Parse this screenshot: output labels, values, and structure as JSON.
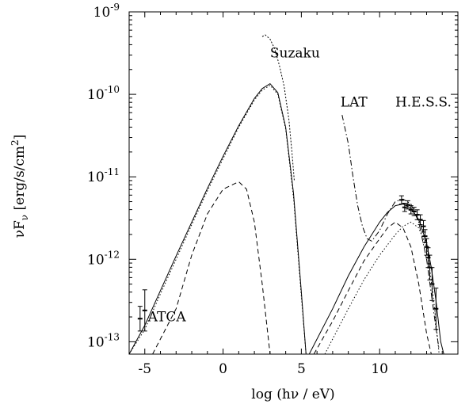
{
  "chart_data": {
    "type": "line",
    "title": "",
    "xlabel": "log (hν / eV)",
    "ylabel": {
      "base": "νF",
      "sub": "ν",
      "text": " [erg/s/cm",
      "sup": "2",
      "end": "]"
    },
    "xlim": [
      -6,
      15
    ],
    "ylim_log10": [
      -13.15,
      -9
    ],
    "y_scale": "log",
    "grid": false,
    "x_ticks": [
      -5,
      0,
      5,
      10
    ],
    "y_ticks": [
      {
        "base": "10",
        "exp": "-13",
        "log": -13
      },
      {
        "base": "10",
        "exp": "-12",
        "log": -12
      },
      {
        "base": "10",
        "exp": "-11",
        "log": -11
      },
      {
        "base": "10",
        "exp": "-10",
        "log": -10
      },
      {
        "base": "10",
        "exp": "-9",
        "log": -9
      }
    ],
    "annotations": [
      {
        "text": "Suzaku",
        "x": 3.0,
        "y_log": -9.55
      },
      {
        "text": "LAT",
        "x": 7.5,
        "y_log": -10.15
      },
      {
        "text": "H.E.S.S.",
        "x": 11.0,
        "y_log": -10.15
      },
      {
        "text": "ATCA",
        "x": -4.8,
        "y_log": -12.75
      }
    ],
    "series": [
      {
        "style": "solid",
        "x": [
          -6,
          -5,
          -4,
          -3,
          -2,
          -1,
          0,
          1,
          2,
          2.5,
          3,
          3.5,
          4,
          4.5,
          5,
          5.3
        ],
        "y_log": [
          -13.18,
          -12.8,
          -12.38,
          -11.96,
          -11.55,
          -11.14,
          -10.75,
          -10.38,
          -10.05,
          -9.93,
          -9.87,
          -9.98,
          -10.4,
          -11.2,
          -12.4,
          -13.3
        ]
      },
      {
        "style": "dotted",
        "x": [
          -6,
          -5,
          -4,
          -3,
          -2,
          -1,
          0,
          1,
          2,
          2.5,
          3,
          3.5,
          4,
          4.5,
          5,
          5.3
        ],
        "y_log": [
          -13.25,
          -12.85,
          -12.42,
          -12.0,
          -11.58,
          -11.17,
          -10.78,
          -10.4,
          -10.07,
          -9.95,
          -9.89,
          -10.0,
          -10.42,
          -11.25,
          -12.45,
          -13.3
        ]
      },
      {
        "style": "dashed",
        "x": [
          -4.5,
          -3,
          -2,
          -1,
          0,
          1,
          1.5,
          2,
          2.5,
          3.0
        ],
        "y_log": [
          -13.2,
          -12.6,
          -11.95,
          -11.45,
          -11.15,
          -11.06,
          -11.15,
          -11.55,
          -12.3,
          -13.2
        ]
      },
      {
        "style": "solid",
        "x": [
          5.5,
          7,
          8,
          9,
          10,
          10.5,
          11,
          11.5,
          12,
          12.5,
          13,
          13.3,
          13.6,
          13.9,
          14.1
        ],
        "y_log": [
          -13.2,
          -12.6,
          -12.2,
          -11.85,
          -11.55,
          -11.43,
          -11.35,
          -11.33,
          -11.38,
          -11.52,
          -11.8,
          -12.1,
          -12.5,
          -13.0,
          -13.2
        ]
      },
      {
        "style": "dashed",
        "x": [
          5.8,
          7,
          8,
          9,
          10,
          10.5,
          11,
          11.5,
          12,
          12.5,
          13.0,
          13.3
        ],
        "y_log": [
          -13.2,
          -12.75,
          -12.38,
          -12.02,
          -11.75,
          -11.62,
          -11.55,
          -11.62,
          -11.85,
          -12.3,
          -12.9,
          -13.2
        ]
      },
      {
        "style": "dotted",
        "x": [
          6.5,
          8,
          9,
          10,
          11,
          11.5,
          12,
          12.5,
          13,
          13.4,
          13.8
        ],
        "y_log": [
          -13.2,
          -12.6,
          -12.25,
          -11.95,
          -11.7,
          -11.6,
          -11.55,
          -11.62,
          -11.85,
          -12.4,
          -13.2
        ]
      },
      {
        "style": "dashdot",
        "x": [
          7.6,
          8.0,
          8.3,
          8.6,
          8.9,
          9.2,
          9.5,
          10.0,
          10.5,
          11.0,
          11.5,
          12.0,
          12.5,
          13.0,
          13.5,
          13.8
        ],
        "y_log": [
          -10.25,
          -10.6,
          -11.0,
          -11.35,
          -11.6,
          -11.75,
          -11.78,
          -11.65,
          -11.45,
          -11.3,
          -11.27,
          -11.33,
          -11.55,
          -12.0,
          -12.7,
          -13.1
        ]
      },
      {
        "style": "dotted-short",
        "x": [
          2.5,
          2.7,
          3.0,
          3.3,
          3.6,
          3.9,
          4.2,
          4.4,
          4.55
        ],
        "y_log": [
          -9.3,
          -9.28,
          -9.33,
          -9.45,
          -9.65,
          -9.9,
          -10.3,
          -10.7,
          -11.05
        ]
      }
    ],
    "points": [
      {
        "x": -5.3,
        "y_log": -12.72,
        "err": 0.15
      },
      {
        "x": -5.0,
        "y_log": -12.62,
        "err": 0.25
      },
      {
        "x": 11.4,
        "y_log": -11.28,
        "err": 0.05
      },
      {
        "x": 11.6,
        "y_log": -11.37,
        "err": 0.05
      },
      {
        "x": 11.8,
        "y_log": -11.34,
        "err": 0.05
      },
      {
        "x": 12.0,
        "y_log": -11.4,
        "err": 0.05
      },
      {
        "x": 12.2,
        "y_log": -11.42,
        "err": 0.05
      },
      {
        "x": 12.4,
        "y_log": -11.46,
        "err": 0.06
      },
      {
        "x": 12.6,
        "y_log": -11.52,
        "err": 0.06
      },
      {
        "x": 12.8,
        "y_log": -11.6,
        "err": 0.07
      },
      {
        "x": 12.9,
        "y_log": -11.72,
        "err": 0.08
      },
      {
        "x": 13.0,
        "y_log": -11.85,
        "err": 0.1
      },
      {
        "x": 13.1,
        "y_log": -11.98,
        "err": 0.12
      },
      {
        "x": 13.2,
        "y_log": -12.1,
        "err": 0.15
      },
      {
        "x": 13.35,
        "y_log": -12.3,
        "err": 0.2
      },
      {
        "x": 13.6,
        "y_log": -12.6,
        "err": 0.25
      }
    ]
  }
}
